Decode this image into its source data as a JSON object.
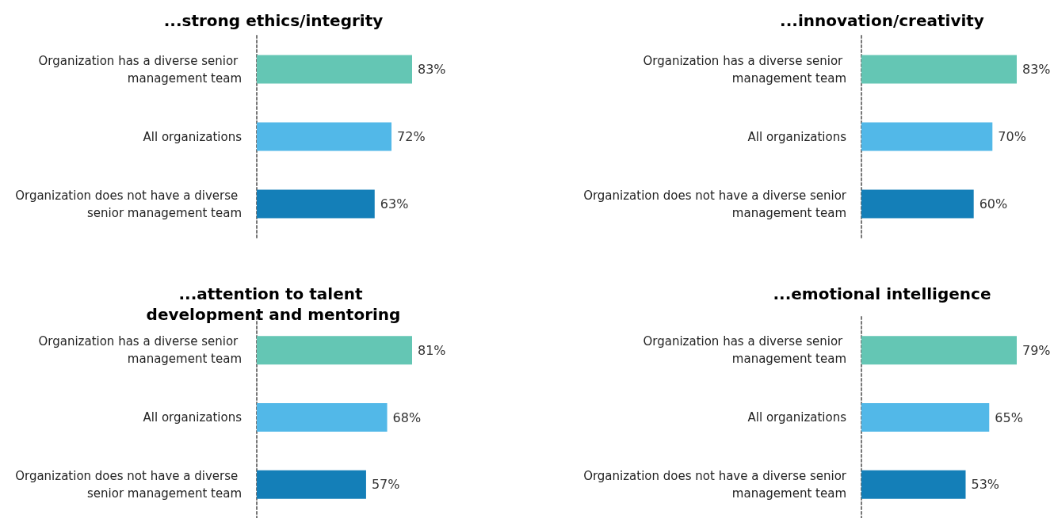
{
  "chart_data": [
    {
      "type": "bar",
      "orientation": "horizontal",
      "title": "...strong ethics/integrity",
      "categories": [
        "Organization has a diverse senior management team",
        "All organizations",
        "Organization does not have a diverse senior management team"
      ],
      "values": [
        83,
        72,
        63
      ],
      "colors": [
        "#64c6b4",
        "#52b8e8",
        "#147fb8"
      ],
      "value_labels": [
        "83%",
        "72%",
        "63%"
      ],
      "tick_labels": "y"
    },
    {
      "type": "bar",
      "orientation": "horizontal",
      "title": "...innovation/creativity",
      "categories": [
        "Organization has a diverse senior management team",
        "All organizations",
        "Organization does not have a diverse senior management team"
      ],
      "values": [
        83,
        70,
        60
      ],
      "colors": [
        "#64c6b4",
        "#52b8e8",
        "#147fb8"
      ],
      "value_labels": [
        "83%",
        "70%",
        "60%"
      ],
      "tick_labels": "y"
    },
    {
      "type": "bar",
      "orientation": "horizontal",
      "title": "...attention to talent development and mentoring",
      "categories": [
        "Organization has a diverse senior management team",
        "All organizations",
        "Organization does not have a diverse senior management team"
      ],
      "values": [
        81,
        68,
        57
      ],
      "colors": [
        "#64c6b4",
        "#52b8e8",
        "#147fb8"
      ],
      "value_labels": [
        "81%",
        "68%",
        "57%"
      ],
      "tick_labels": "y"
    },
    {
      "type": "bar",
      "orientation": "horizontal",
      "title": "...emotional intelligence",
      "categories": [
        "Organization has a diverse senior management team",
        "All organizations",
        "Organization does not have a diverse senior management team"
      ],
      "values": [
        79,
        65,
        53
      ],
      "colors": [
        "#64c6b4",
        "#52b8e8",
        "#147fb8"
      ],
      "value_labels": [
        "79%",
        "65%",
        "53%"
      ],
      "tick_labels": "y"
    }
  ]
}
